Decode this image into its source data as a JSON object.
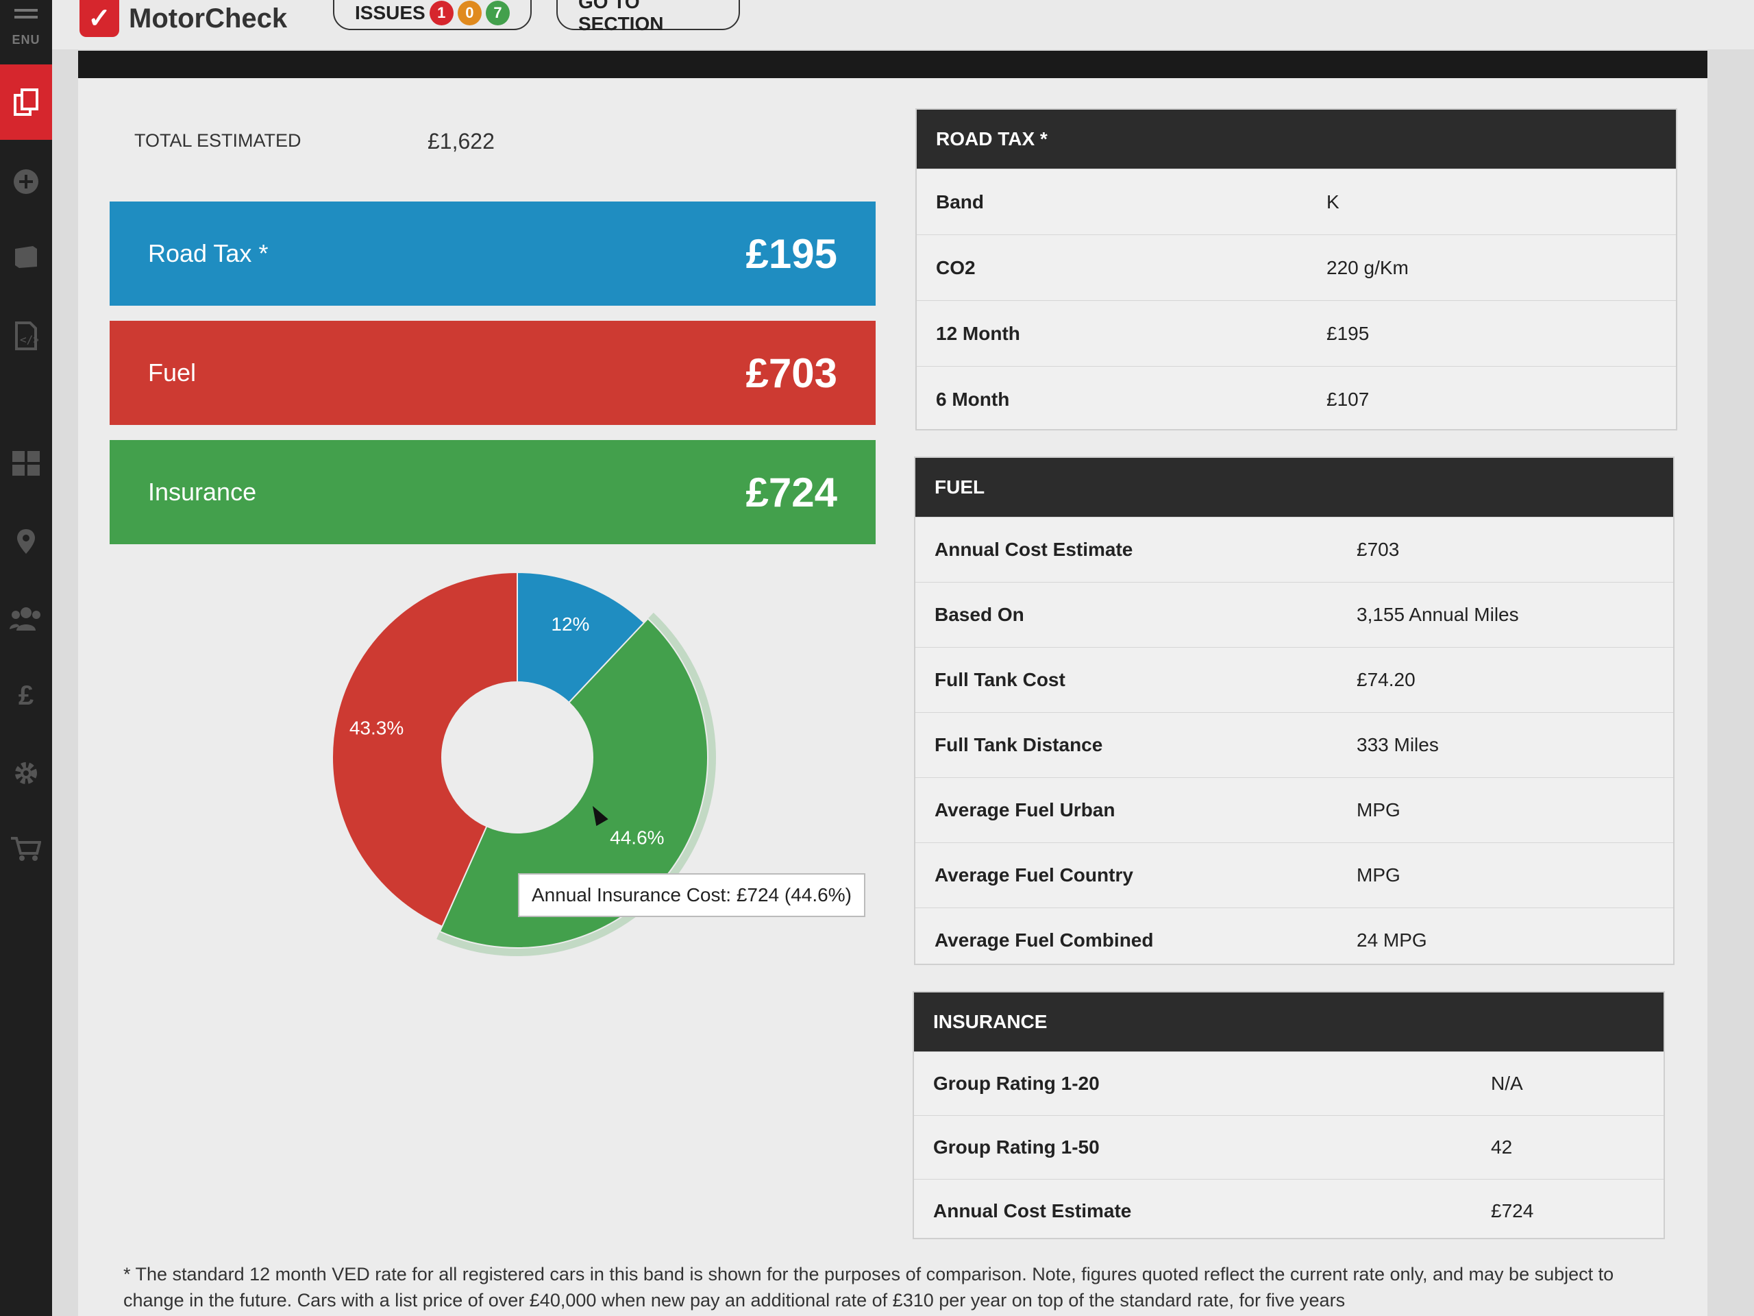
{
  "sidebar": {
    "menu_label": "ENU",
    "icons": [
      "menu-icon",
      "documents-icon",
      "plus-circle-icon",
      "book-icon",
      "code-file-icon",
      "dashboard-icon",
      "location-pin-icon",
      "users-icon",
      "pound-icon",
      "gear-icon",
      "cart-icon"
    ],
    "pound_glyph": "£"
  },
  "header": {
    "brand": "MotorCheck",
    "issues_label": "ISSUES",
    "issue_counts": {
      "red": "1",
      "amber": "0",
      "green": "7"
    },
    "goto_label": "GO TO SECTION"
  },
  "colors": {
    "road_tax": "#1f8dc1",
    "fuel": "#cd3a32",
    "insurance": "#43a04c",
    "panel_header": "#2c2c2c"
  },
  "summary": {
    "total_label": "TOTAL ESTIMATED",
    "total_value": "£1,622",
    "bars": [
      {
        "label": "Road Tax *",
        "value": "£195"
      },
      {
        "label": "Fuel",
        "value": "£703"
      },
      {
        "label": "Insurance",
        "value": "£724"
      }
    ]
  },
  "chart_data": {
    "type": "pie",
    "variant": "donut",
    "series": [
      {
        "name": "Road Tax",
        "value": 195,
        "percent": 12,
        "label": "12%",
        "color": "#1f8dc1"
      },
      {
        "name": "Insurance",
        "value": 724,
        "percent": 44.6,
        "label": "44.6%",
        "color": "#43a04c"
      },
      {
        "name": "Fuel",
        "value": 703,
        "percent": 43.3,
        "label": "43.3%",
        "color": "#cd3a32"
      }
    ],
    "tooltip": "Annual Insurance Cost: £724 (44.6%)",
    "highlighted": "Insurance"
  },
  "road_tax": {
    "title": "ROAD TAX *",
    "rows": [
      {
        "label": "Band",
        "value": "K"
      },
      {
        "label": "CO2",
        "value": "220 g/Km"
      },
      {
        "label": "12 Month",
        "value": "£195"
      },
      {
        "label": "6 Month",
        "value": "£107"
      }
    ]
  },
  "fuel": {
    "title": "FUEL",
    "rows": [
      {
        "label": "Annual Cost Estimate",
        "value": "£703"
      },
      {
        "label": "Based On",
        "value": "3,155 Annual Miles"
      },
      {
        "label": "Full Tank Cost",
        "value": "£74.20"
      },
      {
        "label": "Full Tank Distance",
        "value": "333 Miles"
      },
      {
        "label": "Average Fuel Urban",
        "value": "MPG"
      },
      {
        "label": "Average Fuel Country",
        "value": "MPG"
      },
      {
        "label": "Average Fuel Combined",
        "value": "24 MPG"
      }
    ]
  },
  "insurance": {
    "title": "INSURANCE",
    "rows": [
      {
        "label": "Group Rating 1-20",
        "value": "N/A"
      },
      {
        "label": "Group Rating 1-50",
        "value": "42"
      },
      {
        "label": "Annual Cost Estimate",
        "value": "£724"
      }
    ]
  },
  "footnote": "* The standard 12 month VED rate for all registered cars in this band is shown for the purposes of comparison. Note, figures quoted reflect the current rate only, and may be subject to change in the future. Cars with a list price of over £40,000 when new pay an additional rate of £310 per year on top of the standard rate, for five years"
}
